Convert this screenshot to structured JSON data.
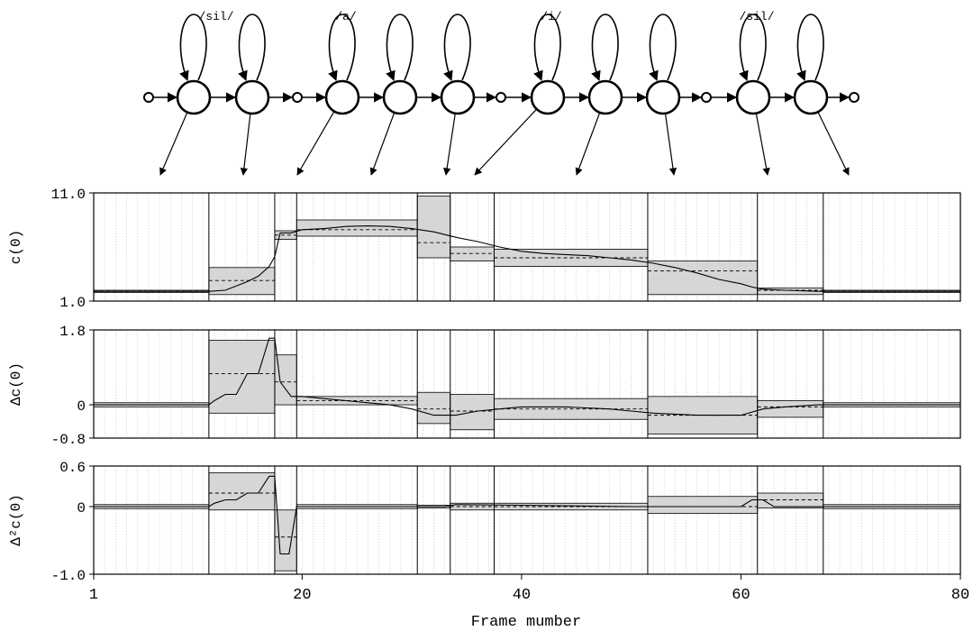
{
  "hmm": {
    "phones": [
      {
        "label": "/sil/"
      },
      {
        "label": "/a/"
      },
      {
        "label": "/i/"
      },
      {
        "label": "/sil/"
      }
    ]
  },
  "chart_data": {
    "type": "line",
    "xlabel": "Frame mumber",
    "x_ticks": [
      1,
      20,
      40,
      60,
      80
    ],
    "xlim": [
      1,
      80
    ],
    "boundaries": [
      11.5,
      17.5,
      19.5,
      30.5,
      33.5,
      37.5,
      51.5,
      61.5,
      67.5
    ],
    "panels": [
      {
        "ylabel": "c(0)",
        "ylim": [
          1.0,
          11.0
        ],
        "y_ticks": [
          {
            "v": 11.0,
            "label": "11.0"
          },
          {
            "v": 1.0,
            "label": "1.0"
          }
        ],
        "means": [
          1.9,
          2.9,
          7.1,
          7.6,
          6.4,
          5.4,
          5.0,
          3.8,
          2.0,
          1.9
        ],
        "upper": [
          2.0,
          4.1,
          7.5,
          8.5,
          10.7,
          6.0,
          5.8,
          4.7,
          2.2,
          2.0
        ],
        "lower": [
          1.8,
          1.6,
          6.7,
          7.0,
          5.0,
          4.7,
          4.2,
          1.6,
          1.6,
          1.8
        ],
        "trajectory": [
          [
            1,
            1.9
          ],
          [
            5,
            1.9
          ],
          [
            10,
            1.9
          ],
          [
            11.5,
            1.9
          ],
          [
            13,
            2.0
          ],
          [
            14,
            2.4
          ],
          [
            15,
            2.8
          ],
          [
            16,
            3.3
          ],
          [
            17,
            4.2
          ],
          [
            17.5,
            5.1
          ],
          [
            18,
            7.3
          ],
          [
            19,
            7.3
          ],
          [
            20,
            7.6
          ],
          [
            22,
            7.7
          ],
          [
            24,
            7.9
          ],
          [
            26,
            7.95
          ],
          [
            28,
            7.9
          ],
          [
            30,
            7.7
          ],
          [
            32,
            7.4
          ],
          [
            34,
            6.9
          ],
          [
            36,
            6.5
          ],
          [
            38,
            6.0
          ],
          [
            40,
            5.6
          ],
          [
            42,
            5.4
          ],
          [
            44,
            5.3
          ],
          [
            46,
            5.2
          ],
          [
            48,
            5.0
          ],
          [
            50,
            4.8
          ],
          [
            52,
            4.5
          ],
          [
            54,
            4.1
          ],
          [
            56,
            3.6
          ],
          [
            58,
            3.0
          ],
          [
            60,
            2.6
          ],
          [
            61,
            2.3
          ],
          [
            62,
            2.1
          ],
          [
            64,
            2.0
          ],
          [
            67,
            1.9
          ],
          [
            80,
            1.9
          ]
        ]
      },
      {
        "ylabel": "Δc(0)",
        "ylim": [
          -0.8,
          1.8
        ],
        "y_ticks": [
          {
            "v": 1.8,
            "label": "1.8"
          },
          {
            "v": 0,
            "label": "0"
          },
          {
            "v": -0.8,
            "label": "-0.8"
          }
        ],
        "means": [
          0.0,
          0.75,
          0.55,
          0.1,
          -0.1,
          -0.15,
          -0.1,
          -0.25,
          -0.05,
          0.0
        ],
        "upper": [
          0.05,
          1.55,
          1.2,
          0.2,
          0.3,
          0.25,
          0.15,
          0.2,
          0.1,
          0.05
        ],
        "lower": [
          -0.05,
          -0.2,
          0.0,
          0.0,
          -0.45,
          -0.6,
          -0.35,
          -0.7,
          -0.3,
          -0.05
        ],
        "trajectory": [
          [
            1,
            0.0
          ],
          [
            11.5,
            0.0
          ],
          [
            12,
            0.1
          ],
          [
            13,
            0.25
          ],
          [
            14,
            0.25
          ],
          [
            15,
            0.75
          ],
          [
            16,
            0.75
          ],
          [
            17,
            1.6
          ],
          [
            17.5,
            1.6
          ],
          [
            18,
            0.55
          ],
          [
            19,
            0.2
          ],
          [
            20,
            0.2
          ],
          [
            22,
            0.15
          ],
          [
            24,
            0.1
          ],
          [
            26,
            0.05
          ],
          [
            28,
            0.0
          ],
          [
            30,
            -0.1
          ],
          [
            32,
            -0.25
          ],
          [
            34,
            -0.25
          ],
          [
            36,
            -0.15
          ],
          [
            38,
            -0.1
          ],
          [
            40,
            -0.05
          ],
          [
            44,
            -0.05
          ],
          [
            48,
            -0.1
          ],
          [
            50,
            -0.15
          ],
          [
            52,
            -0.2
          ],
          [
            56,
            -0.25
          ],
          [
            60,
            -0.25
          ],
          [
            62,
            -0.1
          ],
          [
            64,
            -0.05
          ],
          [
            67,
            0.0
          ],
          [
            80,
            0.0
          ]
        ]
      },
      {
        "ylabel": "Δ²c(0)",
        "ylim": [
          -1.0,
          0.6
        ],
        "y_ticks": [
          {
            "v": 0.6,
            "label": "0.6"
          },
          {
            "v": 0,
            "label": "0"
          },
          {
            "v": -1.0,
            "label": "-1.0"
          }
        ],
        "means": [
          0.0,
          0.2,
          -0.45,
          0.0,
          0.0,
          0.0,
          0.0,
          0.0,
          0.1,
          0.0
        ],
        "upper": [
          0.03,
          0.5,
          -0.05,
          0.03,
          0.02,
          0.05,
          0.05,
          0.15,
          0.2,
          0.03
        ],
        "lower": [
          -0.03,
          -0.05,
          -0.95,
          -0.03,
          -0.02,
          -0.05,
          -0.05,
          -0.1,
          -0.02,
          -0.03
        ],
        "trajectory": [
          [
            1,
            0.0
          ],
          [
            11.5,
            0.0
          ],
          [
            12,
            0.05
          ],
          [
            13,
            0.1
          ],
          [
            14,
            0.1
          ],
          [
            15,
            0.2
          ],
          [
            16,
            0.2
          ],
          [
            17,
            0.45
          ],
          [
            17.5,
            0.45
          ],
          [
            18,
            -0.7
          ],
          [
            18.8,
            -0.7
          ],
          [
            19.5,
            0.0
          ],
          [
            20,
            0.0
          ],
          [
            33,
            0.0
          ],
          [
            34,
            0.03
          ],
          [
            40,
            0.02
          ],
          [
            50,
            0.0
          ],
          [
            52,
            0.0
          ],
          [
            56,
            0.0
          ],
          [
            60,
            0.0
          ],
          [
            61,
            0.1
          ],
          [
            62,
            0.1
          ],
          [
            63,
            0.0
          ],
          [
            67,
            0.0
          ],
          [
            80,
            0.0
          ]
        ]
      }
    ]
  }
}
